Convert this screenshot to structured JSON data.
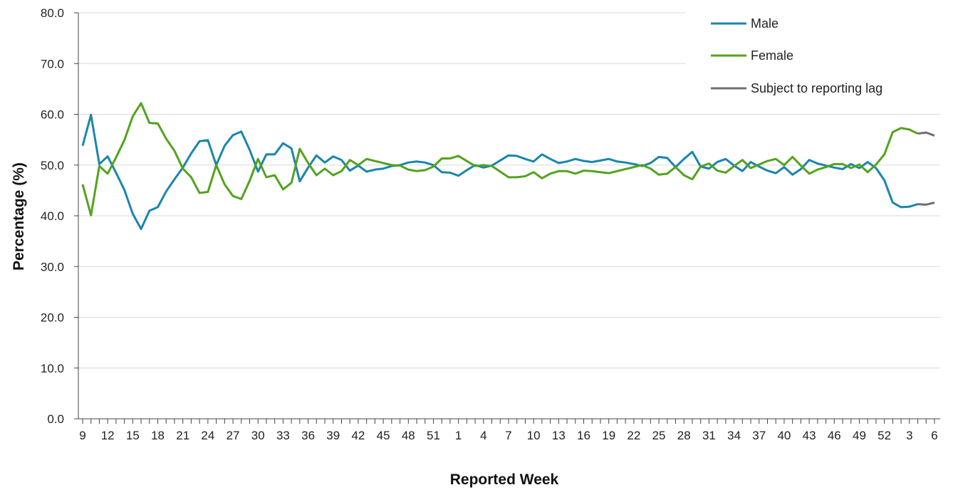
{
  "chart_data": {
    "type": "line",
    "title": "",
    "xlabel": "Reported Week",
    "ylabel": "Percentage (%)",
    "ylim": [
      0,
      80
    ],
    "yticks": [
      "0.0",
      "10.0",
      "20.0",
      "30.0",
      "40.0",
      "50.0",
      "60.0",
      "70.0",
      "80.0"
    ],
    "grid": "horizontal",
    "legend_position": "top-right",
    "x": [
      9,
      10,
      11,
      12,
      13,
      14,
      15,
      16,
      17,
      18,
      19,
      20,
      21,
      22,
      23,
      24,
      25,
      26,
      27,
      28,
      29,
      30,
      31,
      32,
      33,
      34,
      35,
      36,
      37,
      38,
      39,
      40,
      41,
      42,
      43,
      44,
      45,
      46,
      47,
      48,
      49,
      50,
      51,
      52,
      53,
      1,
      2,
      3,
      4,
      5,
      6,
      7,
      8,
      9,
      10,
      11,
      12,
      13,
      14,
      15,
      16,
      17,
      18,
      19,
      20,
      21,
      22,
      23,
      24,
      25,
      26,
      27,
      28,
      29,
      30,
      31,
      32,
      33,
      34,
      35,
      36,
      37,
      38,
      39,
      40,
      41,
      42,
      43,
      44,
      45,
      46,
      47,
      48,
      49,
      50,
      51,
      52,
      1,
      2,
      3,
      4,
      5,
      6
    ],
    "x_tick_labels": [
      "9",
      "12",
      "15",
      "18",
      "21",
      "24",
      "27",
      "30",
      "33",
      "36",
      "39",
      "42",
      "45",
      "48",
      "51",
      "1",
      "4",
      "7",
      "10",
      "13",
      "16",
      "19",
      "22",
      "25",
      "28",
      "31",
      "34",
      "37",
      "40",
      "43",
      "46",
      "49",
      "52",
      "3",
      "6"
    ],
    "series": [
      {
        "name": "Male",
        "color": "#1a86ab",
        "values": [
          53.8,
          59.9,
          50.2,
          51.7,
          48.5,
          45.1,
          40.4,
          37.4,
          41.0,
          41.7,
          44.8,
          47.2,
          49.5,
          52.3,
          54.7,
          54.9,
          50.0,
          53.8,
          55.9,
          56.6,
          53.0,
          48.7,
          52.1,
          52.1,
          54.3,
          53.3,
          46.8,
          49.5,
          51.9,
          50.5,
          51.7,
          51.0,
          48.9,
          49.9,
          48.7,
          49.1,
          49.3,
          49.8,
          50.0,
          50.5,
          50.7,
          50.5,
          50.0,
          48.6,
          48.5,
          47.9,
          49.0,
          50.0,
          49.5,
          49.9,
          50.9,
          51.9,
          51.8,
          51.2,
          50.7,
          52.1,
          51.2,
          50.4,
          50.7,
          51.2,
          50.8,
          50.6,
          50.9,
          51.2,
          50.7,
          50.5,
          50.2,
          49.8,
          50.4,
          51.6,
          51.4,
          49.6,
          51.2,
          52.6,
          49.7,
          49.3,
          50.6,
          51.2,
          49.9,
          48.8,
          50.6,
          49.7,
          48.9,
          48.4,
          49.6,
          48.1,
          49.2,
          51.0,
          50.3,
          49.9,
          49.5,
          49.2,
          50.2,
          49.4,
          50.6,
          49.4,
          47.0,
          42.6,
          41.7,
          41.8,
          42.3,
          42.2,
          42.6
        ]
      },
      {
        "name": "Female",
        "color": "#54a21e",
        "values": [
          46.2,
          40.1,
          49.8,
          48.3,
          51.5,
          54.9,
          59.6,
          62.2,
          58.3,
          58.2,
          55.2,
          52.8,
          49.3,
          47.6,
          44.5,
          44.7,
          50.0,
          46.2,
          43.9,
          43.3,
          46.9,
          51.2,
          47.6,
          48.0,
          45.2,
          46.5,
          53.2,
          50.4,
          48.0,
          49.3,
          48.0,
          48.8,
          51.0,
          50.0,
          51.2,
          50.8,
          50.4,
          50.0,
          49.9,
          49.1,
          48.8,
          49.0,
          49.7,
          51.3,
          51.3,
          51.8,
          50.8,
          49.8,
          50.0,
          49.8,
          48.7,
          47.6,
          47.6,
          47.8,
          48.6,
          47.4,
          48.3,
          48.8,
          48.8,
          48.3,
          48.9,
          48.8,
          48.6,
          48.4,
          48.8,
          49.2,
          49.6,
          50.0,
          49.3,
          48.1,
          48.3,
          49.6,
          48.0,
          47.2,
          49.7,
          50.3,
          48.9,
          48.5,
          49.8,
          51.0,
          49.4,
          50.1,
          50.8,
          51.2,
          50.0,
          51.6,
          49.9,
          48.3,
          49.1,
          49.6,
          50.2,
          50.2,
          49.4,
          50.1,
          48.6,
          50.1,
          52.1,
          56.5,
          57.3,
          57.0,
          56.2,
          56.4,
          55.8
        ]
      },
      {
        "name": "Subject to reporting lag",
        "color": "#6f6f6f",
        "lag_start_index": 100
      }
    ]
  }
}
